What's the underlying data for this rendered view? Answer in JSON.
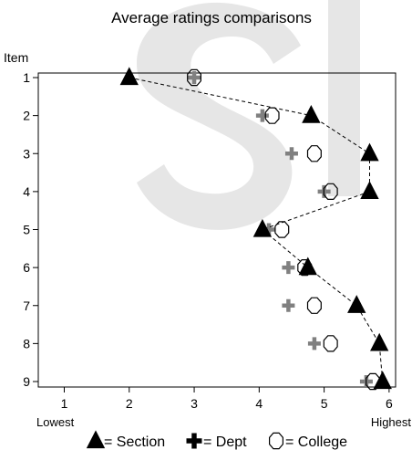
{
  "chart_data": {
    "type": "scatter",
    "title": "Average ratings comparisons",
    "ylabel": "Item",
    "xlim": [
      0.6,
      6.1
    ],
    "x_ticks": [
      1,
      2,
      3,
      4,
      5,
      6
    ],
    "x_tick_labels": [
      "1",
      "2",
      "3",
      "4",
      "5",
      "6"
    ],
    "x_end_labels": {
      "low": "Lowest",
      "high": "Highest"
    },
    "categories": [
      "1",
      "2",
      "3",
      "4",
      "5",
      "6",
      "7",
      "8",
      "9"
    ],
    "series": [
      {
        "name": "Section",
        "marker": "triangle",
        "color": "#000000",
        "connected": true,
        "values": [
          2.0,
          4.8,
          5.7,
          5.7,
          4.05,
          4.75,
          5.5,
          5.85,
          5.9
        ]
      },
      {
        "name": "Dept",
        "marker": "plus",
        "color": "#808080",
        "connected": false,
        "values": [
          3.0,
          4.05,
          4.5,
          5.0,
          4.15,
          4.45,
          4.45,
          4.85,
          5.65
        ]
      },
      {
        "name": "College",
        "marker": "octagon",
        "color": "#000000",
        "connected": false,
        "values": [
          3.0,
          4.2,
          4.85,
          5.1,
          4.35,
          4.7,
          4.85,
          5.1,
          5.75
        ]
      }
    ],
    "legend_position": "bottom",
    "grid": false,
    "legend": [
      {
        "marker": "triangle",
        "label": "= Section"
      },
      {
        "marker": "plus",
        "label": "= Dept"
      },
      {
        "marker": "octagon",
        "label": "= College"
      }
    ]
  }
}
